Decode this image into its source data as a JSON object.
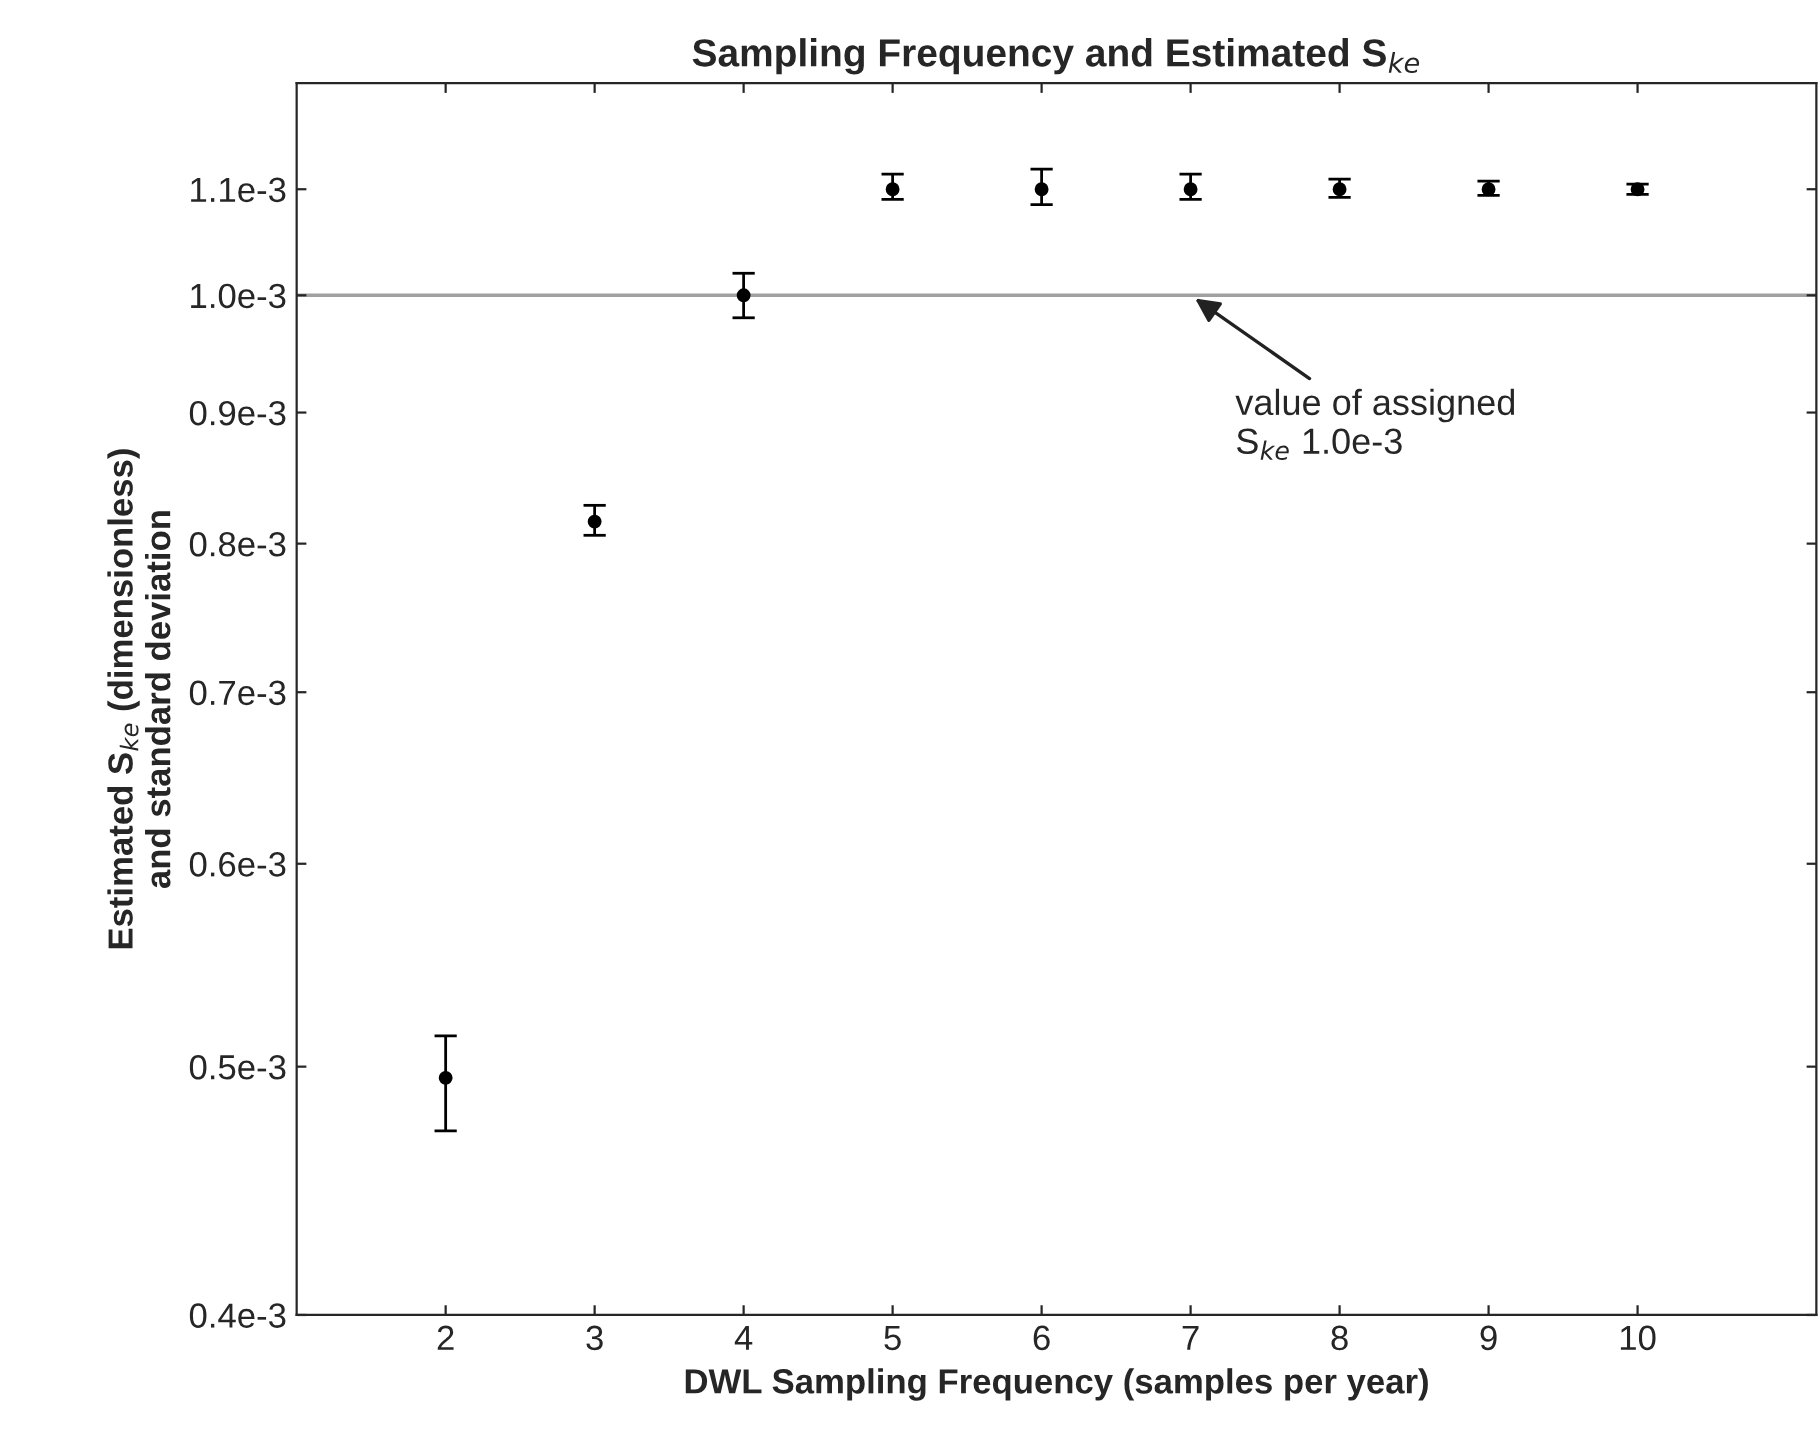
{
  "chart_data": {
    "type": "scatter",
    "title": "Sampling Frequency and Estimated S$_{ke}$",
    "xlabel": "DWL Sampling Frequency (samples per year)",
    "ylabel": "Estimated S$_{ke}$ (dimensionless)\nand standard deviation",
    "x": [
      2,
      3,
      4,
      5,
      6,
      7,
      8,
      9,
      10
    ],
    "series": [
      {
        "color": "#000000",
        "values": [
          0.000495,
          0.000816,
          0.001,
          0.0011,
          0.0011,
          0.0011,
          0.0011,
          0.0011,
          0.0011
        ],
        "errors": [
          [
            0.000472,
            0.000514
          ],
          [
            0.000806,
            0.000828
          ],
          [
            0.00098,
            0.00102
          ],
          [
            0.00109,
            0.001115
          ],
          [
            0.001085,
            0.00112
          ],
          [
            0.00109,
            0.001115
          ],
          [
            0.001092,
            0.00111
          ],
          [
            0.001094,
            0.001108
          ],
          [
            0.001095,
            0.001105
          ]
        ]
      }
    ],
    "marker": "circle",
    "log": true,
    "grid": false,
    "xlim": [
      1,
      11.2
    ],
    "xticks": [
      2,
      3,
      4,
      5,
      6,
      7,
      8,
      9,
      10
    ],
    "ylim": [
      0.0004,
      0.00121
    ],
    "yticks": [
      {
        "value": 0.0004,
        "label": "0.4e-3"
      },
      {
        "value": 0.0005,
        "label": "0.5e-3"
      },
      {
        "value": 0.0006,
        "label": "0.6e-3"
      },
      {
        "value": 0.0007,
        "label": "0.7e-3"
      },
      {
        "value": 0.0008,
        "label": "0.8e-3"
      },
      {
        "value": 0.0009,
        "label": "0.9e-3"
      },
      {
        "value": 0.001,
        "label": "1.0e-3"
      },
      {
        "value": 0.0011,
        "label": "1.1e-3"
      }
    ],
    "ref_lines": [
      {
        "axis": "y",
        "value": 0.001,
        "color": "#a0a0a0"
      }
    ],
    "annotations": [
      {
        "text": "value of assigned\nS$_{ke}$ 1.0e-3",
        "x": 7,
        "y": 0.001
      }
    ]
  }
}
